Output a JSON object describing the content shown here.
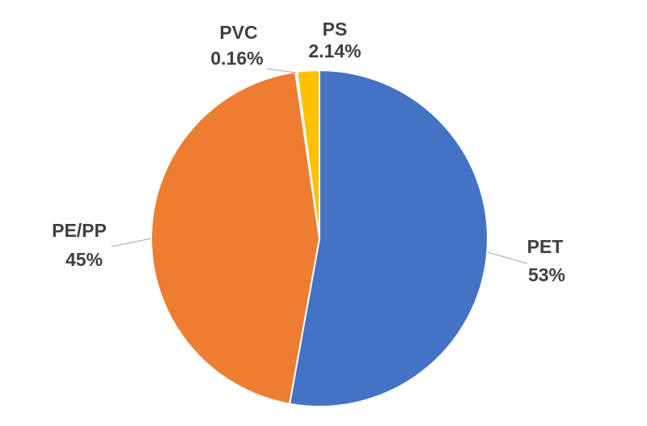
{
  "chart_data": {
    "type": "pie",
    "title": "",
    "start_angle": "top",
    "direction": "clockwise",
    "slices": [
      {
        "label": "PET",
        "value": 53,
        "value_label": "53%",
        "color": "#4472C4"
      },
      {
        "label": "PE/PP",
        "value": 45,
        "value_label": "45%",
        "color": "#ED7D31"
      },
      {
        "label": "PVC",
        "value": 0.16,
        "value_label": "0.16%",
        "color": "#A5A5A5"
      },
      {
        "label": "PS",
        "value": 2.14,
        "value_label": "2.14%",
        "color": "#FFC000"
      }
    ],
    "label_color": "#404040",
    "legend": "none"
  }
}
